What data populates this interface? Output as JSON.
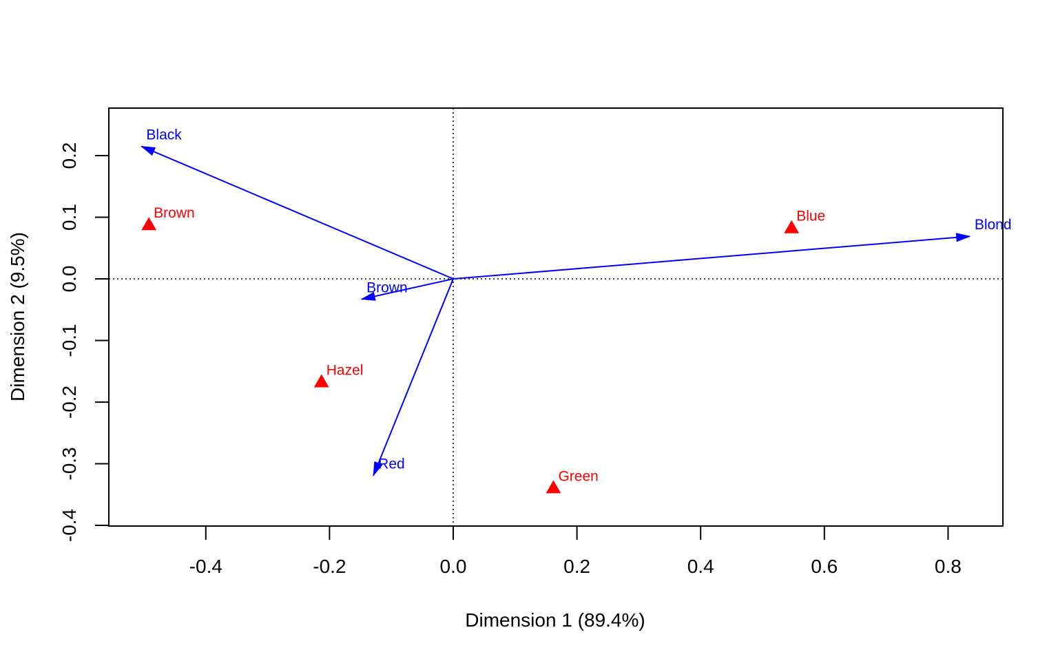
{
  "chart_data": {
    "type": "scatter",
    "xlabel": "Dimension 1 (89.4%)",
    "ylabel": "Dimension 2 (9.5%)",
    "xlim": [
      -0.56,
      0.89
    ],
    "ylim": [
      -0.4,
      0.277
    ],
    "x_ticks": [
      -0.4,
      -0.2,
      0.0,
      0.2,
      0.4,
      0.6,
      0.8
    ],
    "y_ticks": [
      -0.4,
      -0.3,
      -0.2,
      -0.1,
      0.0,
      0.1,
      0.2
    ],
    "x_tick_labels": [
      "-0.4",
      "-0.2",
      "0.0",
      "0.2",
      "0.4",
      "0.6",
      "0.8"
    ],
    "y_tick_labels": [
      "-0.4",
      "-0.3",
      "-0.2",
      "-0.1",
      "0.0",
      "0.1",
      "0.2"
    ],
    "reference_lines": {
      "x": 0,
      "y": 0,
      "style": "dotted"
    },
    "colors": {
      "points": "#ff0000",
      "arrows": "#0000ff",
      "axes": "#000000"
    },
    "points": [
      {
        "label": "Brown",
        "x": -0.492,
        "y": 0.088
      },
      {
        "label": "Blue",
        "x": 0.547,
        "y": 0.083
      },
      {
        "label": "Hazel",
        "x": -0.213,
        "y": -0.167
      },
      {
        "label": "Green",
        "x": 0.162,
        "y": -0.339
      }
    ],
    "arrows": [
      {
        "label": "Black",
        "x": -0.504,
        "y": 0.215
      },
      {
        "label": "Blond",
        "x": 0.835,
        "y": 0.069
      },
      {
        "label": "Brown",
        "x": -0.148,
        "y": -0.033
      },
      {
        "label": "Red",
        "x": -0.129,
        "y": -0.319
      }
    ]
  }
}
